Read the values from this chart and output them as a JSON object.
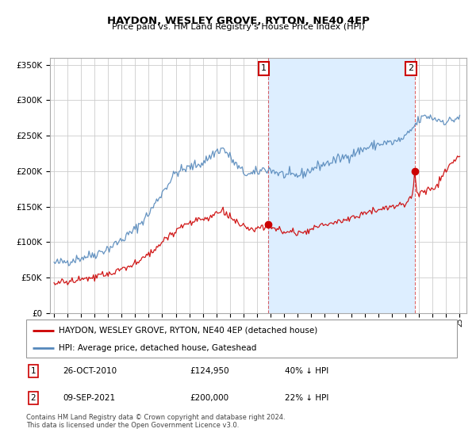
{
  "title": "HAYDON, WESLEY GROVE, RYTON, NE40 4EP",
  "subtitle": "Price paid vs. HM Land Registry's House Price Index (HPI)",
  "legend_label_red": "HAYDON, WESLEY GROVE, RYTON, NE40 4EP (detached house)",
  "legend_label_blue": "HPI: Average price, detached house, Gateshead",
  "annotation1_label": "1",
  "annotation1_date": "26-OCT-2010",
  "annotation1_price": "£124,950",
  "annotation1_hpi": "40% ↓ HPI",
  "annotation2_label": "2",
  "annotation2_date": "09-SEP-2021",
  "annotation2_price": "£200,000",
  "annotation2_hpi": "22% ↓ HPI",
  "footer": "Contains HM Land Registry data © Crown copyright and database right 2024.\nThis data is licensed under the Open Government Licence v3.0.",
  "red_color": "#cc0000",
  "blue_color": "#5588bb",
  "shade_color": "#ddeeff",
  "background_color": "#ffffff",
  "grid_color": "#cccccc",
  "ylim": [
    0,
    360000
  ],
  "yticks": [
    0,
    50000,
    100000,
    150000,
    200000,
    250000,
    300000,
    350000
  ],
  "sale1_year": 2010.82,
  "sale1_price": 124950,
  "sale2_year": 2021.69,
  "sale2_price": 200000
}
